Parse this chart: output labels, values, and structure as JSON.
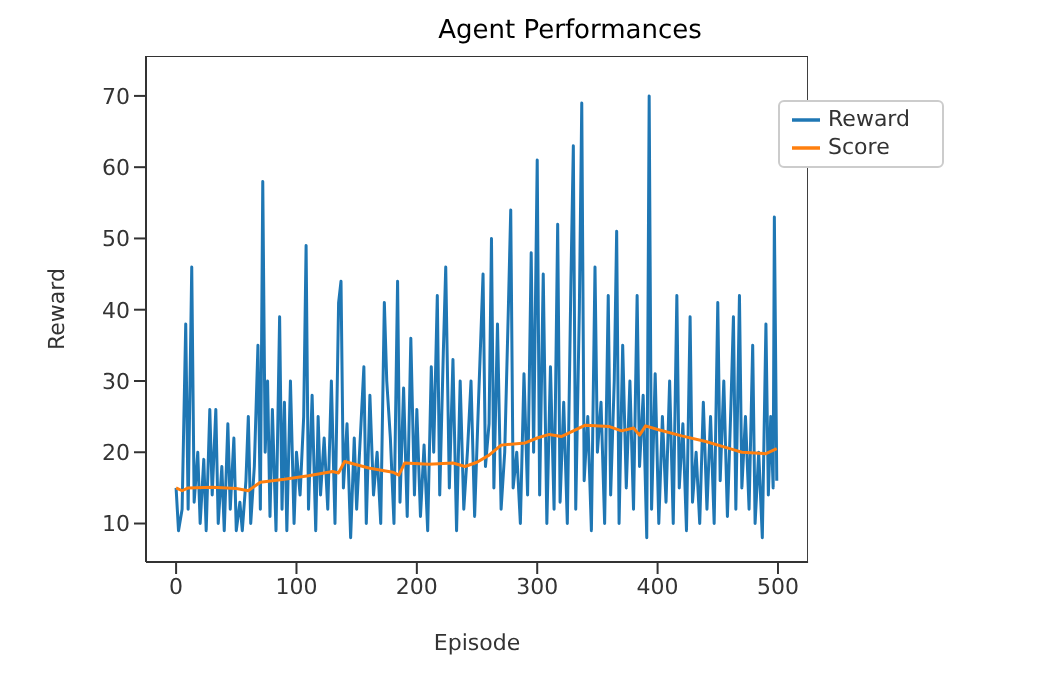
{
  "chart_data": {
    "type": "line",
    "title": "Agent Performances",
    "xlabel": "Episode",
    "ylabel": "Reward",
    "xlim": [
      -25,
      525
    ],
    "ylim": [
      4.6,
      75.6
    ],
    "xticks": [
      0,
      100,
      200,
      300,
      400,
      500
    ],
    "yticks": [
      10,
      20,
      30,
      40,
      50,
      60,
      70
    ],
    "legend": "top right",
    "grid": false,
    "series": [
      {
        "name": "Reward",
        "color": "#1f77b4",
        "x": [
          0,
          2,
          5,
          8,
          10,
          13,
          15,
          18,
          20,
          23,
          25,
          28,
          30,
          33,
          35,
          38,
          40,
          43,
          45,
          48,
          50,
          53,
          55,
          58,
          60,
          62,
          65,
          68,
          70,
          72,
          74,
          76,
          78,
          80,
          83,
          86,
          88,
          90,
          92,
          95,
          98,
          100,
          103,
          106,
          108,
          110,
          113,
          116,
          118,
          120,
          123,
          126,
          129,
          132,
          135,
          137,
          139,
          142,
          145,
          148,
          150,
          153,
          156,
          158,
          161,
          164,
          167,
          170,
          173,
          175,
          178,
          181,
          184,
          186,
          189,
          192,
          195,
          198,
          200,
          203,
          206,
          209,
          212,
          214,
          217,
          219,
          222,
          224,
          227,
          230,
          233,
          236,
          239,
          242,
          245,
          248,
          251,
          255,
          257,
          260,
          262,
          264,
          267,
          270,
          273,
          276,
          278,
          280,
          283,
          286,
          289,
          292,
          295,
          297,
          300,
          302,
          305,
          308,
          311,
          314,
          317,
          319,
          322,
          325,
          328,
          330,
          332,
          335,
          337,
          339,
          342,
          345,
          348,
          350,
          353,
          356,
          359,
          361,
          364,
          366,
          368,
          371,
          374,
          377,
          380,
          383,
          385,
          388,
          391,
          393,
          395,
          398,
          401,
          404,
          407,
          410,
          413,
          416,
          418,
          421,
          424,
          427,
          429,
          432,
          435,
          438,
          441,
          444,
          447,
          450,
          452,
          455,
          458,
          461,
          463,
          465,
          468,
          470,
          473,
          476,
          479,
          481,
          484,
          487,
          490,
          492,
          494,
          496,
          497,
          499
        ],
        "values": [
          15,
          9,
          12,
          38,
          12,
          46,
          13,
          20,
          10,
          19,
          9,
          26,
          14,
          26,
          10,
          18,
          9,
          24,
          12,
          22,
          9,
          13,
          9,
          16,
          25,
          10,
          18,
          35,
          12,
          58,
          20,
          30,
          11,
          26,
          9,
          39,
          12,
          27,
          9,
          30,
          10,
          20,
          14,
          25,
          49,
          12,
          28,
          9,
          25,
          14,
          22,
          12,
          30,
          10,
          41,
          44,
          15,
          24,
          8,
          22,
          12,
          22,
          32,
          10,
          28,
          14,
          20,
          10,
          41,
          30,
          22,
          10,
          44,
          13,
          29,
          11,
          36,
          14,
          26,
          11,
          21,
          9,
          32,
          20,
          42,
          14,
          34,
          46,
          15,
          33,
          9,
          30,
          12,
          20,
          30,
          11,
          26,
          45,
          18,
          24,
          50,
          15,
          38,
          12,
          20,
          40,
          54,
          15,
          20,
          10,
          31,
          14,
          48,
          20,
          61,
          14,
          45,
          10,
          32,
          12,
          52,
          13,
          27,
          10,
          44,
          63,
          12,
          40,
          69,
          16,
          25,
          9,
          46,
          20,
          27,
          10,
          42,
          14,
          30,
          51,
          10,
          35,
          15,
          30,
          12,
          42,
          18,
          28,
          8,
          70,
          12,
          31,
          10,
          25,
          13,
          30,
          10,
          42,
          15,
          24,
          9,
          39,
          13,
          20,
          10,
          27,
          12,
          25,
          10,
          41,
          16,
          30,
          11,
          27,
          39,
          12,
          42,
          15,
          25,
          12,
          35,
          10,
          20,
          8,
          38,
          14,
          25,
          15,
          53,
          16
        ]
      },
      {
        "name": "Score",
        "color": "#ff7f0e",
        "x": [
          0,
          5,
          10,
          30,
          50,
          60,
          70,
          90,
          110,
          130,
          135,
          140,
          160,
          180,
          185,
          190,
          210,
          230,
          240,
          250,
          260,
          270,
          290,
          300,
          310,
          320,
          340,
          360,
          370,
          380,
          385,
          390,
          400,
          420,
          440,
          460,
          470,
          490,
          499
        ],
        "values": [
          15,
          14.6,
          15,
          15.1,
          14.9,
          14.6,
          15.8,
          16.2,
          16.7,
          17.3,
          17.1,
          18.7,
          17.8,
          17.2,
          16.8,
          18.5,
          18.3,
          18.5,
          18,
          18.6,
          19.6,
          21,
          21.3,
          22,
          22.5,
          22.2,
          23.8,
          23.6,
          23,
          23.4,
          22.4,
          23.7,
          23.2,
          22.3,
          21.5,
          20.5,
          20,
          19.8,
          20.5
        ]
      }
    ]
  }
}
